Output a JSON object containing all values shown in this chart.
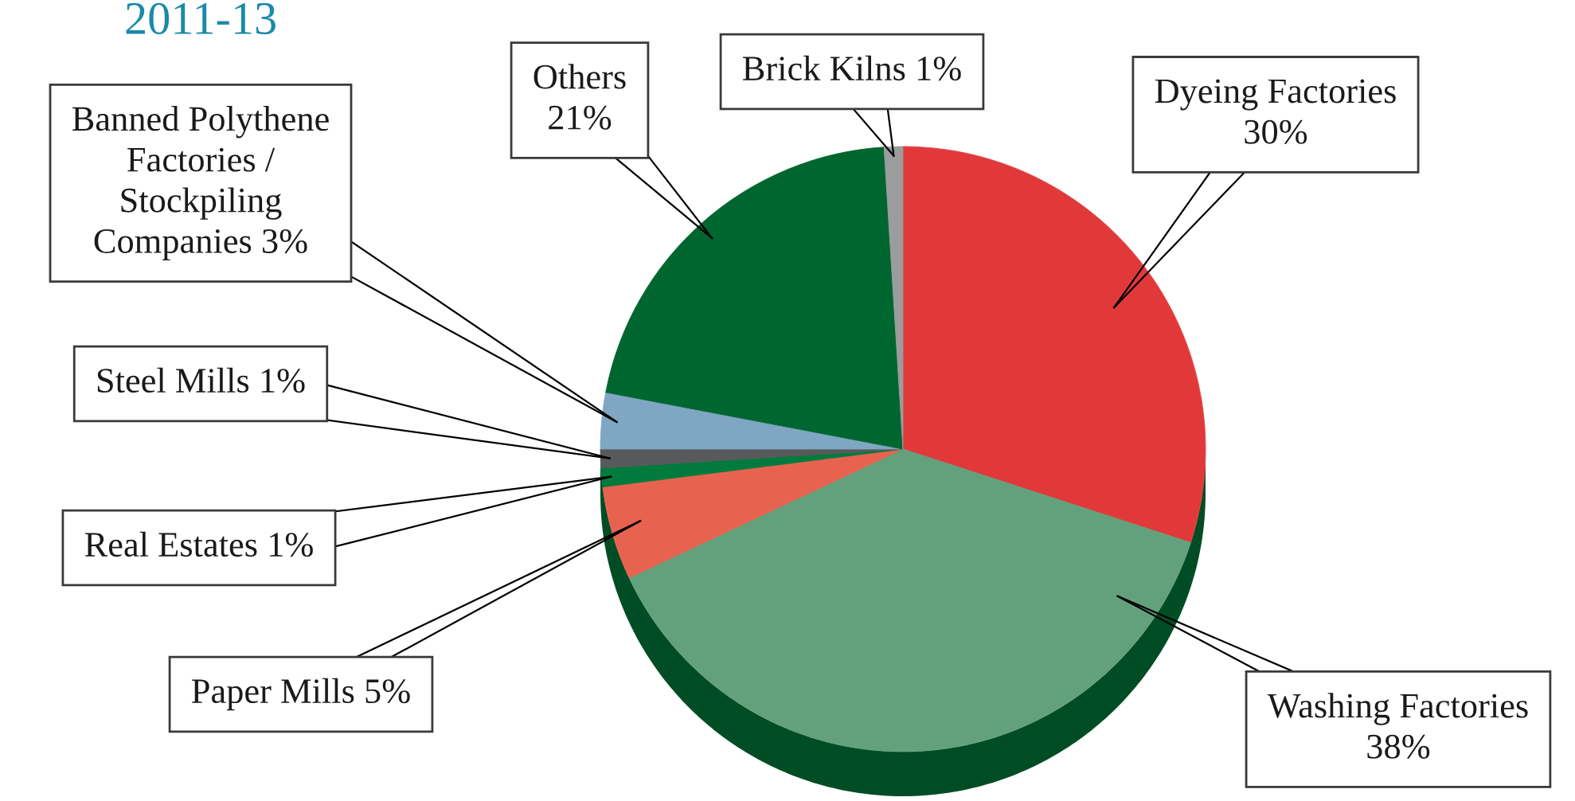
{
  "chart_data": {
    "type": "pie",
    "title": "2011-13",
    "categories": [
      "Dyeing Factories",
      "Washing Factories",
      "Paper Mills",
      "Real Estates",
      "Steel Mills",
      "Banned Polythene Factories / Stockpiling Companies",
      "Others",
      "Brick Kilns"
    ],
    "values": [
      30,
      38,
      5,
      1,
      1,
      3,
      21,
      1
    ],
    "value_labels": [
      "30%",
      "38%",
      "5%",
      "1%",
      "1%",
      "3%",
      "21%",
      "1%"
    ],
    "colors": [
      "#e1393a",
      "#63a17c",
      "#e8634f",
      "#007a3d",
      "#58595b",
      "#7fa6c3",
      "#00662f",
      "#9b9c9e"
    ]
  }
}
